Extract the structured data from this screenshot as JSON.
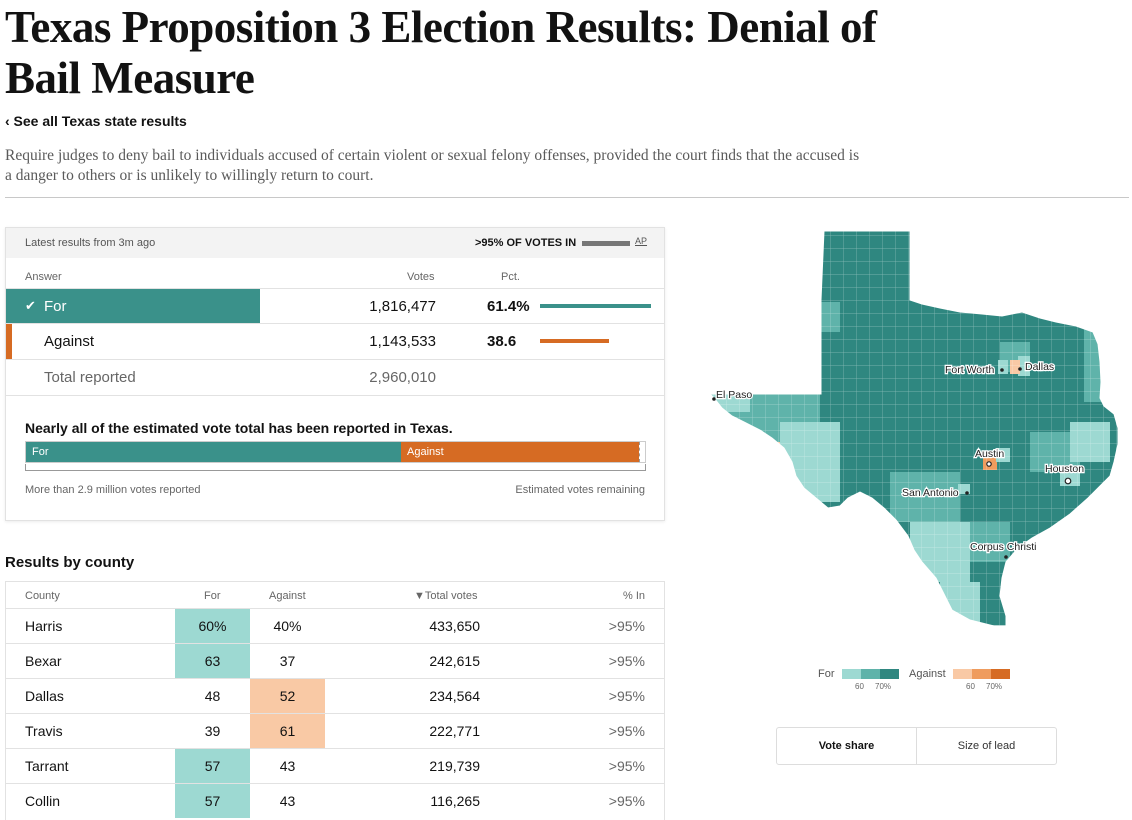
{
  "header": {
    "title": "Texas Proposition 3 Election Results: Denial of Bail Measure",
    "back_link": "‹ See all Texas state results",
    "description": "Require judges to deny bail to individuals accused of certain violent or sexual felony offenses, provided the court finds that the accused is a danger to others or is unlikely to willingly return to court."
  },
  "summary": {
    "latest": "Latest results from 3m ago",
    "votes_in": ">95% OF VOTES IN",
    "source": "AP",
    "columns": {
      "answer": "Answer",
      "votes": "Votes",
      "pct": "Pct."
    },
    "rows": [
      {
        "label": "For",
        "check": "✔",
        "votes": "1,816,477",
        "pct": "61.4%",
        "share": 0.614
      },
      {
        "label": "Against",
        "votes": "1,143,533",
        "pct": "38.6",
        "share": 0.386
      }
    ],
    "total": {
      "label": "Total reported",
      "votes": "2,960,010"
    },
    "estimate": {
      "title": "Nearly all of the estimated vote total has been reported in Texas.",
      "for_label": "For",
      "against_label": "Against",
      "for_share": 0.606,
      "against_share": 0.385,
      "left_note": "More than 2.9 million votes reported",
      "right_note": "Estimated votes remaining"
    }
  },
  "county": {
    "title": "Results by county",
    "columns": {
      "county": "County",
      "for": "For",
      "against": "Against",
      "total": "▼Total votes",
      "in": "% In"
    },
    "rows": [
      {
        "county": "Harris",
        "for": "60%",
        "against": "40%",
        "total": "433,650",
        "in": ">95%",
        "winner": "for"
      },
      {
        "county": "Bexar",
        "for": "63",
        "against": "37",
        "total": "242,615",
        "in": ">95%",
        "winner": "for"
      },
      {
        "county": "Dallas",
        "for": "48",
        "against": "52",
        "total": "234,564",
        "in": ">95%",
        "winner": "against"
      },
      {
        "county": "Travis",
        "for": "39",
        "against": "61",
        "total": "222,771",
        "in": ">95%",
        "winner": "against"
      },
      {
        "county": "Tarrant",
        "for": "57",
        "against": "43",
        "total": "219,739",
        "in": ">95%",
        "winner": "for"
      },
      {
        "county": "Collin",
        "for": "57",
        "against": "43",
        "total": "116,265",
        "in": ">95%",
        "winner": "for"
      }
    ]
  },
  "map": {
    "cities": [
      "El Paso",
      "Fort Worth",
      "Dallas",
      "Austin",
      "Houston",
      "San Antonio",
      "Corpus Christi"
    ]
  },
  "legend": {
    "for_label": "For",
    "against_label": "Against",
    "ticks": [
      "60",
      "70%"
    ],
    "for_colors": [
      "#9dd9d2",
      "#5fb3aa",
      "#2f8780"
    ],
    "against_colors": [
      "#f9c9a5",
      "#ef9c5e",
      "#d66b23"
    ]
  },
  "toggle": {
    "vote_share": "Vote share",
    "size_of_lead": "Size of lead"
  },
  "colors": {
    "for": "#3a918a",
    "against": "#d66b23",
    "for_light": "#9dd9d2",
    "against_light": "#f9c9a5"
  }
}
